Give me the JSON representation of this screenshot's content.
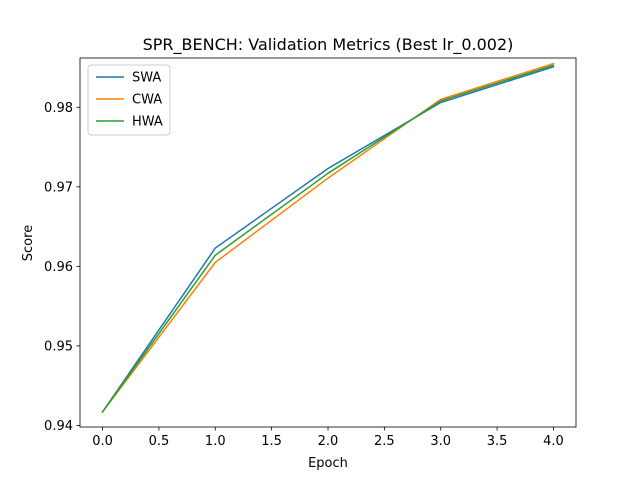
{
  "chart_data": {
    "type": "line",
    "title": "SPR_BENCH: Validation Metrics (Best lr_0.002)",
    "xlabel": "Epoch",
    "ylabel": "Score",
    "xlim": [
      -0.2,
      4.2
    ],
    "ylim": [
      0.9398,
      0.9862
    ],
    "xticks": [
      0.0,
      0.5,
      1.0,
      1.5,
      2.0,
      2.5,
      3.0,
      3.5,
      4.0
    ],
    "xtick_labels": [
      "0.0",
      "0.5",
      "1.0",
      "1.5",
      "2.0",
      "2.5",
      "3.0",
      "3.5",
      "4.0"
    ],
    "yticks": [
      0.94,
      0.95,
      0.96,
      0.97,
      0.98
    ],
    "ytick_labels": [
      "0.94",
      "0.95",
      "0.96",
      "0.97",
      "0.98"
    ],
    "grid": false,
    "legend_position": "top-left",
    "x": [
      0,
      1,
      2,
      3,
      4
    ],
    "series": [
      {
        "name": "SWA",
        "color": "#1f77b4",
        "values": [
          0.9417,
          0.9623,
          0.9723,
          0.9806,
          0.9851
        ]
      },
      {
        "name": "CWA",
        "color": "#ff7f0e",
        "values": [
          0.9417,
          0.9605,
          0.9711,
          0.981,
          0.9855
        ]
      },
      {
        "name": "HWA",
        "color": "#2ca02c",
        "values": [
          0.9417,
          0.9614,
          0.9717,
          0.9808,
          0.9853
        ]
      }
    ]
  }
}
